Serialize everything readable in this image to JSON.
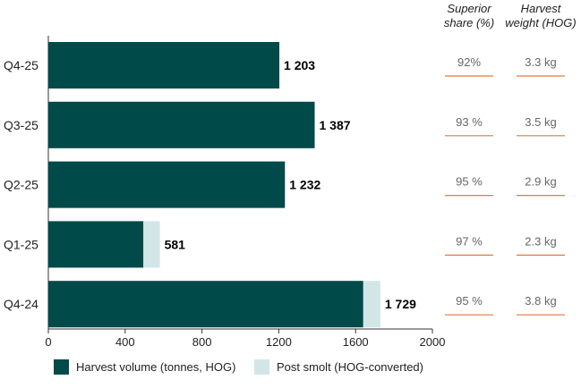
{
  "chart_data": {
    "type": "bar",
    "orientation": "horizontal",
    "stacked": true,
    "categories": [
      "Q4-25",
      "Q3-25",
      "Q2-25",
      "Q1-25",
      "Q4-24"
    ],
    "series": [
      {
        "name": "Harvest  volume (tonnes, HOG)",
        "color": "#004a4a",
        "values": [
          1203,
          1387,
          1232,
          495,
          1640
        ]
      },
      {
        "name": "Post smolt (HOG-converted)",
        "color": "#d2e6e8",
        "values": [
          0,
          0,
          0,
          86,
          89
        ]
      }
    ],
    "total_labels": [
      "1 203",
      "1 387",
      "1 232",
      "581",
      "1 729"
    ],
    "xlim": [
      0,
      2000
    ],
    "xticks": [
      0,
      400,
      800,
      1200,
      1600,
      2000
    ],
    "grid": false,
    "legend_position": "bottom",
    "table_columns": [
      {
        "header_lines": [
          "Superior",
          "share (%)"
        ],
        "values": [
          "92%",
          "93 %",
          "95 %",
          "97 %",
          "95 %"
        ]
      },
      {
        "header_lines": [
          "Harvest",
          "weight (HOG)"
        ],
        "values": [
          "3.3 kg",
          "3.5 kg",
          "2.9 kg",
          "2.3 kg",
          "3.8 kg"
        ]
      }
    ],
    "table_rule_color": "#e07a3f"
  }
}
